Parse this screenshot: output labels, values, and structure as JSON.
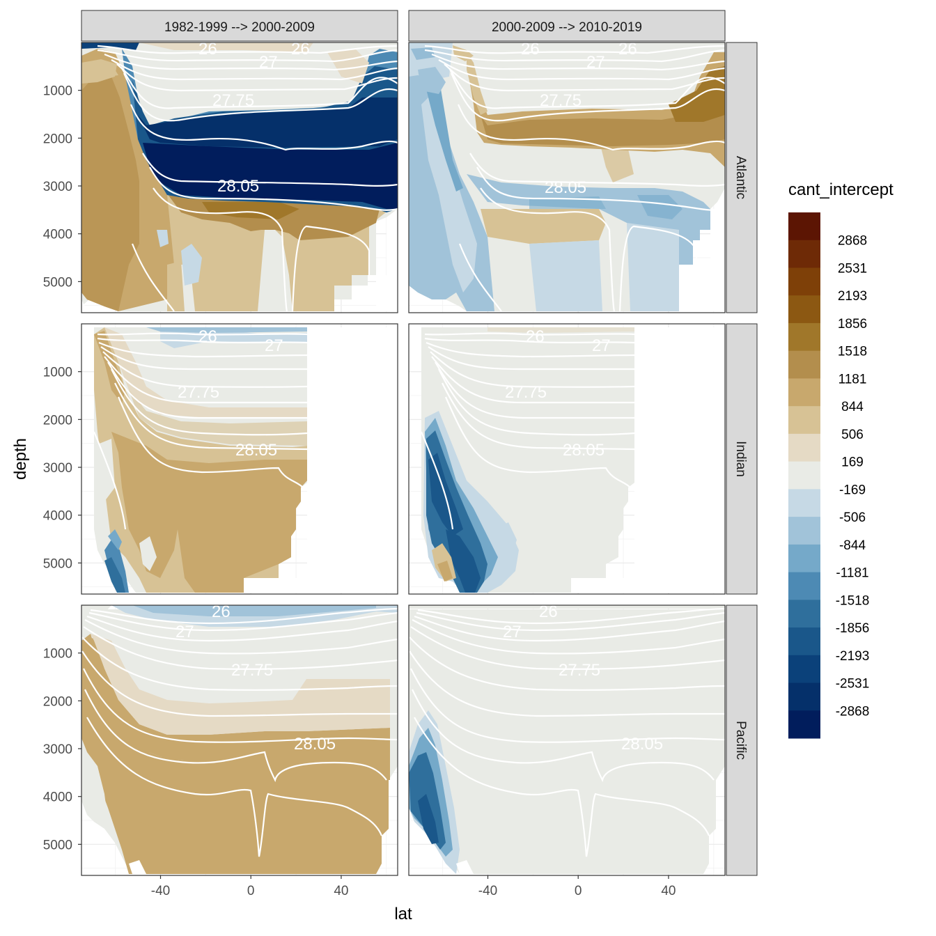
{
  "chart_data": {
    "type": "heatmap",
    "subtype": "filled-contour small multiples",
    "x_label": "lat",
    "y_label": "depth",
    "x_ticks": [
      -40,
      0,
      40
    ],
    "x_range": [
      -75,
      65
    ],
    "y_ticks": [
      1000,
      2000,
      3000,
      4000,
      5000
    ],
    "y_range": [
      5650,
      0
    ],
    "y_reversed": true,
    "columns": [
      "1982-1999 --> 2000-2009",
      "2000-2009 --> 2010-2019"
    ],
    "rows": [
      "Atlantic",
      "Indian",
      "Pacific"
    ],
    "legend": {
      "title": "cant_intercept",
      "breaks": [
        "2868",
        "2531",
        "2193",
        "1856",
        "1518",
        "1181",
        "844",
        "506",
        "169",
        "-169",
        "-506",
        "-844",
        "-1181",
        "-1518",
        "-1856",
        "-2193",
        "-2531",
        "-2868"
      ],
      "colors": [
        "#5c1503",
        "#6e2a06",
        "#7e4008",
        "#8c5812",
        "#a0772a",
        "#b38e4d",
        "#c8a86d",
        "#d7c295",
        "#e5dac5",
        "#e9ebe6",
        "#c6d9e5",
        "#a1c3d9",
        "#75a9c9",
        "#4d8ab4",
        "#2f6f9c",
        "#1a578a",
        "#0b417a",
        "#05306a",
        "#011d5c"
      ]
    },
    "contour_labels": [
      "26",
      "27",
      "27.75",
      "28.05"
    ],
    "panels": [
      {
        "row": "Atlantic",
        "column": "1982-1999 --> 2000-2009",
        "description_values": {
          "surface_north_lat_gt_45": "-844 to -1856",
          "upper_deep_1000_2200_lat_-45_to_60": "-1518 to -2193",
          "deep_2200_2900_lat_-45_to_60": "-2868",
          "deep_2900_3600_lat_-45_to_50": "1181 to 1518",
          "abyss_south_of_-55": "844 to 1181",
          "intermediate_south": "169 to 844"
        }
      },
      {
        "row": "Atlantic",
        "column": "2000-2009 --> 2010-2019",
        "description_values": {
          "upper_deep_1400_2200_lat_-45_to_60": "1181 to 1518",
          "deep_2800_3800": "-169 to -844",
          "abyss_southern": "-506 to -844",
          "upper_ocean": "-169 to 169"
        }
      },
      {
        "row": "Indian",
        "column": "1982-1999 --> 2000-2009",
        "description_values": {
          "deep_and_abyss_lat_-60_to_20": "506 to 844",
          "mid_depth_1600_2600": "169 to 506",
          "near_surface_lat_-40_to_-10": "-169 to -506",
          "abyss_near_-65": "-844 to -1856"
        }
      },
      {
        "row": "Indian",
        "column": "2000-2009 --> 2010-2019",
        "description_values": {
          "southern_slope_lat_-65_to_-50_depth_2500_5500": "-1181 to -2193",
          "elsewhere": "-169 to 169"
        }
      },
      {
        "row": "Pacific",
        "column": "1982-1999 --> 2000-2009",
        "description_values": {
          "deep_and_abyss": "506 to 844",
          "mid_depth_1700_3200": "169 to 506",
          "near_surface_tropics": "-169 to -506"
        }
      },
      {
        "row": "Pacific",
        "column": "2000-2009 --> 2010-2019",
        "description_values": {
          "southern_slope_lat_-72_to_-60_depth_2200_5600": "-844 to -1856",
          "elsewhere": "-169 to 169"
        }
      }
    ]
  }
}
